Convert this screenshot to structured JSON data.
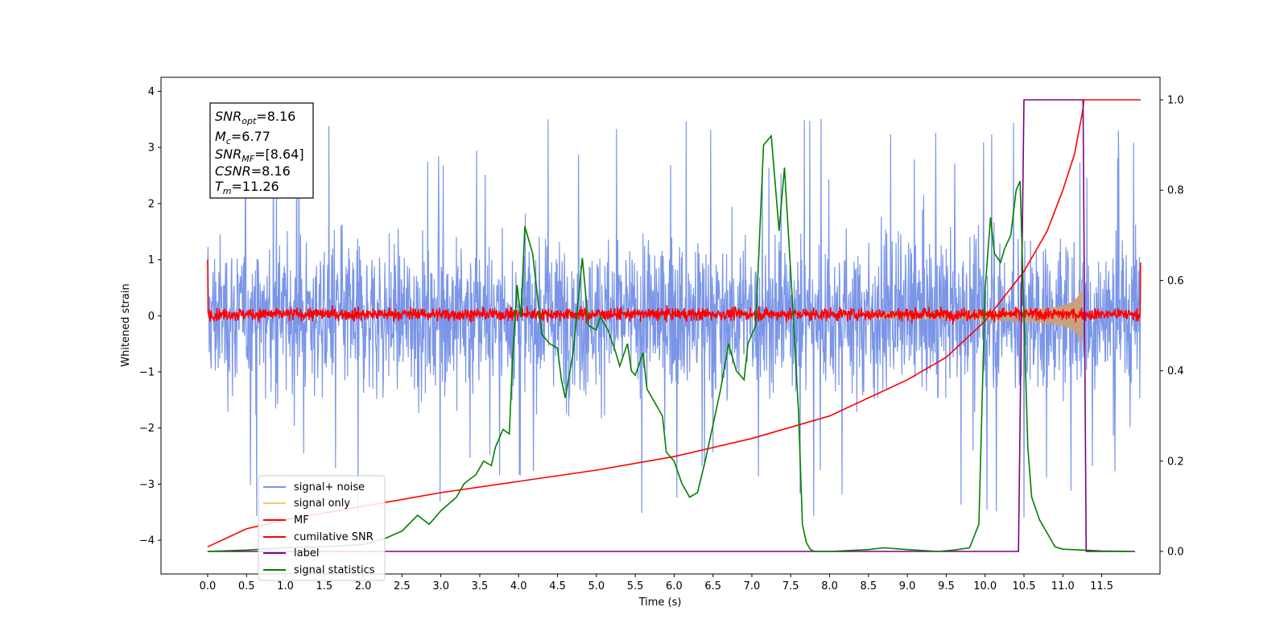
{
  "chart_data": {
    "type": "line",
    "xlabel": "Time (s)",
    "ylabel": "Whitened strain",
    "xlim": [
      -0.6,
      12.25
    ],
    "ylim": [
      -4.6,
      4.25
    ],
    "ylim_right": [
      -0.05,
      1.05
    ],
    "x_ticks": [
      "0.0",
      "0.5",
      "1.0",
      "1.5",
      "2.0",
      "2.5",
      "3.0",
      "3.5",
      "4.0",
      "4.5",
      "5.0",
      "5.5",
      "6.0",
      "6.5",
      "7.0",
      "7.5",
      "8.0",
      "8.5",
      "9.0",
      "9.5",
      "10.0",
      "10.5",
      "11.0",
      "11.5"
    ],
    "y_ticks_left": [
      "4",
      "3",
      "2",
      "1",
      "0",
      "−1",
      "−2",
      "−3",
      "−4"
    ],
    "y_ticks_right": [
      "1.0",
      "0.8",
      "0.6",
      "0.4",
      "0.2",
      "0.0"
    ],
    "stats_box": {
      "snr_opt": {
        "main": "SNR",
        "sub": "opt",
        "value": "=8.16"
      },
      "mc": {
        "main": "M",
        "sub": "c",
        "value": "=6.77"
      },
      "snr_mf": {
        "main": "SNR",
        "sub": "MF",
        "value": "=[8.64]"
      },
      "csnr": {
        "main": "CSNR",
        "sub": "",
        "value": "=8.16"
      },
      "tm": {
        "main": "T",
        "sub": "m",
        "value": "=11.26"
      }
    },
    "legend_position": "lower-left",
    "series": [
      {
        "name": "signal+ noise",
        "color": "#7b96e8",
        "axis": "left",
        "x_range": [
          0.0,
          12.0
        ],
        "envelope_typical": [
          -1.3,
          1.3
        ],
        "envelope_peaks": [
          -3.6,
          3.8
        ]
      },
      {
        "name": "signal only",
        "color": "#f5c76a",
        "axis": "left",
        "chirp_start": 8.5,
        "chirp_end": 11.26,
        "amplitude_at_merger": 0.8
      },
      {
        "name": "MF",
        "color": "#ff0000",
        "axis": "left",
        "x_range": [
          0.0,
          12.0
        ],
        "envelope": [
          -0.15,
          0.2
        ],
        "edge_value": 1.0
      },
      {
        "name": "cumilative SNR",
        "color": "#ff0000",
        "axis": "right",
        "x": [
          0.0,
          0.5,
          1.0,
          2.0,
          3.0,
          4.0,
          5.0,
          6.0,
          7.0,
          8.0,
          9.0,
          9.5,
          10.0,
          10.5,
          10.8,
          11.0,
          11.15,
          11.26,
          11.27,
          12.0
        ],
        "y": [
          0.01,
          0.05,
          0.07,
          0.1,
          0.13,
          0.155,
          0.18,
          0.21,
          0.25,
          0.3,
          0.38,
          0.43,
          0.51,
          0.62,
          0.71,
          0.8,
          0.88,
          0.98,
          1.0,
          1.0
        ]
      },
      {
        "name": "label",
        "color": "#800080",
        "axis": "right",
        "x": [
          0.0,
          10.43,
          10.5,
          11.26,
          11.3,
          11.93
        ],
        "y": [
          0.0,
          0.0,
          1.0,
          1.0,
          0.0,
          0.0
        ]
      },
      {
        "name": "signal statistics",
        "color": "#008000",
        "axis": "right",
        "x": [
          0.0,
          0.5,
          1.0,
          1.5,
          2.0,
          2.3,
          2.5,
          2.7,
          2.85,
          3.0,
          3.2,
          3.3,
          3.45,
          3.55,
          3.65,
          3.7,
          3.8,
          3.88,
          3.92,
          3.98,
          4.03,
          4.08,
          4.18,
          4.3,
          4.4,
          4.5,
          4.55,
          4.6,
          4.7,
          4.82,
          4.9,
          5.0,
          5.05,
          5.15,
          5.25,
          5.3,
          5.4,
          5.45,
          5.5,
          5.6,
          5.65,
          5.75,
          5.85,
          5.9,
          6.0,
          6.1,
          6.2,
          6.3,
          6.4,
          6.5,
          6.6,
          6.7,
          6.8,
          6.9,
          6.95,
          7.05,
          7.15,
          7.25,
          7.35,
          7.42,
          7.52,
          7.6,
          7.65,
          7.7,
          7.75,
          7.8,
          8.0,
          8.5,
          8.7,
          9.0,
          9.4,
          9.6,
          9.8,
          9.92,
          10.0,
          10.07,
          10.12,
          10.2,
          10.25,
          10.33,
          10.4,
          10.45,
          10.55,
          10.6,
          10.7,
          10.8,
          10.9,
          11.0,
          11.5,
          11.9
        ],
        "y": [
          0.0,
          0.003,
          0.008,
          0.01,
          0.015,
          0.03,
          0.045,
          0.08,
          0.06,
          0.09,
          0.12,
          0.15,
          0.17,
          0.2,
          0.19,
          0.23,
          0.27,
          0.26,
          0.42,
          0.59,
          0.52,
          0.72,
          0.66,
          0.48,
          0.46,
          0.45,
          0.38,
          0.34,
          0.44,
          0.65,
          0.5,
          0.49,
          0.52,
          0.49,
          0.44,
          0.41,
          0.46,
          0.4,
          0.39,
          0.44,
          0.36,
          0.33,
          0.3,
          0.22,
          0.2,
          0.15,
          0.12,
          0.13,
          0.2,
          0.28,
          0.36,
          0.46,
          0.4,
          0.38,
          0.46,
          0.5,
          0.9,
          0.92,
          0.71,
          0.85,
          0.56,
          0.31,
          0.06,
          0.02,
          0.005,
          0.0,
          0.0,
          0.004,
          0.008,
          0.004,
          0.0,
          0.003,
          0.008,
          0.06,
          0.58,
          0.74,
          0.66,
          0.64,
          0.67,
          0.7,
          0.8,
          0.82,
          0.23,
          0.12,
          0.07,
          0.04,
          0.01,
          0.005,
          0.001,
          0.0
        ]
      }
    ]
  }
}
